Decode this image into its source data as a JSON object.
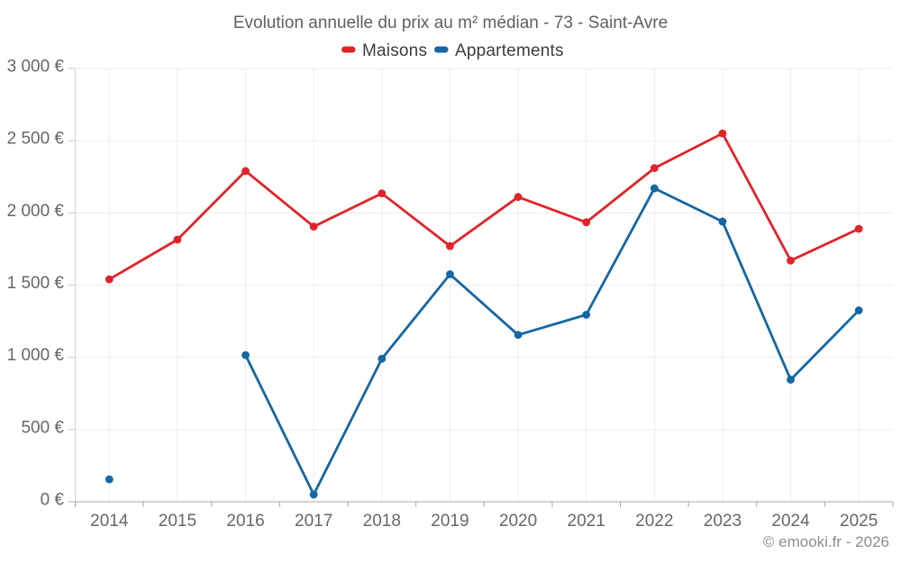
{
  "title": "Evolution annuelle du prix au m² médian - 73 - Saint-Avre",
  "watermark": "© emooki.fr - 2026",
  "legend": {
    "items": [
      {
        "label": "Maisons",
        "color": "#e02429"
      },
      {
        "label": "Appartements",
        "color": "#1467a3"
      }
    ]
  },
  "chart_data": {
    "type": "line",
    "title": "Evolution annuelle du prix au m² médian - 73 - Saint-Avre",
    "x": [
      "2014",
      "2015",
      "2016",
      "2017",
      "2018",
      "2019",
      "2020",
      "2021",
      "2022",
      "2023",
      "2024",
      "2025"
    ],
    "series": [
      {
        "name": "Maisons",
        "color": "#e02429",
        "values": [
          1540,
          1815,
          2290,
          1905,
          2135,
          1770,
          2110,
          1935,
          2310,
          2550,
          1670,
          1890
        ]
      },
      {
        "name": "Appartements",
        "color": "#1467a3",
        "values": [
          155,
          null,
          1015,
          50,
          990,
          1575,
          1155,
          1295,
          2170,
          1940,
          845,
          1325
        ]
      }
    ],
    "ylim": [
      0,
      3000
    ],
    "y_ticks": [
      {
        "value": 0,
        "label": "0 €"
      },
      {
        "value": 500,
        "label": "500 €"
      },
      {
        "value": 1000,
        "label": "1 000 €"
      },
      {
        "value": 1500,
        "label": "1 500 €"
      },
      {
        "value": 2000,
        "label": "2 000 €"
      },
      {
        "value": 2500,
        "label": "2 500 €"
      },
      {
        "value": 3000,
        "label": "3 000 €"
      }
    ],
    "grid": true,
    "legend_position": "top",
    "unit": "€/m²"
  },
  "colors": {
    "grid": "#ececec",
    "axis": "#a8a8a8",
    "title_text": "#606060",
    "legend_text": "#3d3d3d",
    "tick_text": "#676767",
    "watermark_text": "#8c8c8c",
    "background": "#ffffff"
  }
}
